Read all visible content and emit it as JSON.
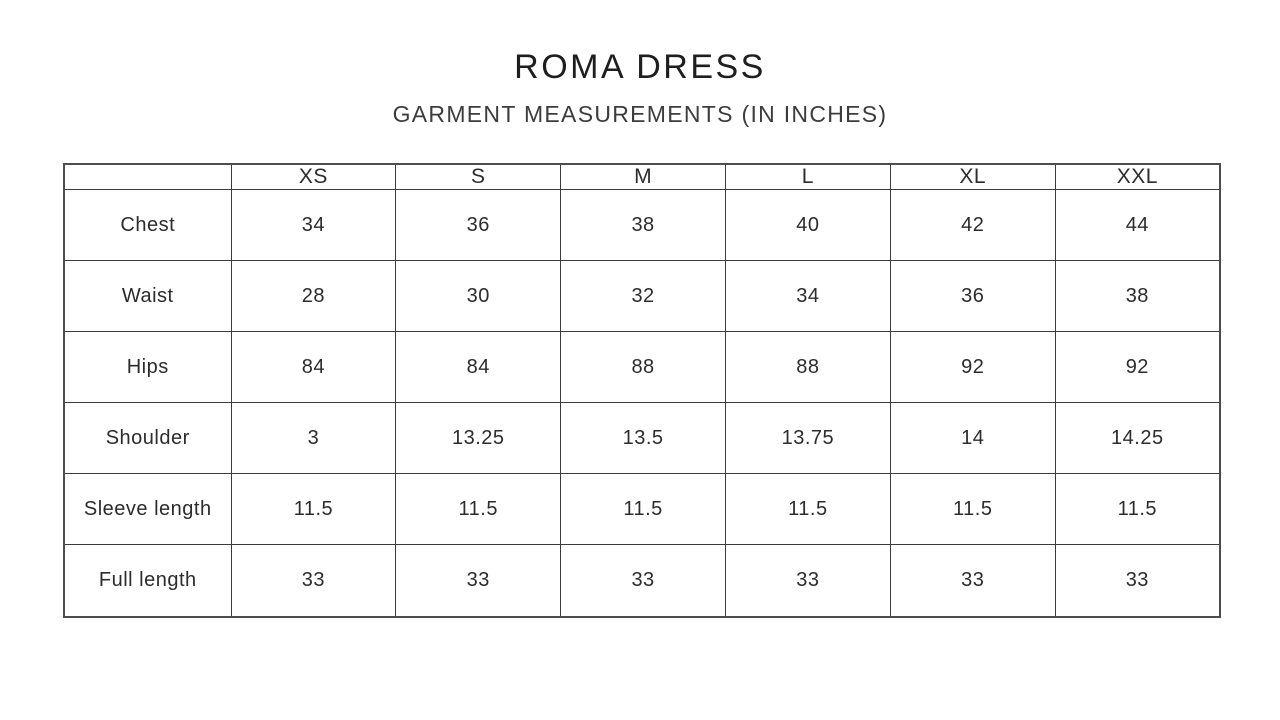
{
  "header": {
    "title": "ROMA DRESS",
    "subtitle": "GARMENT MEASUREMENTS (IN INCHES)"
  },
  "chart_data": {
    "type": "table",
    "title": "ROMA DRESS",
    "subtitle": "GARMENT MEASUREMENTS (IN INCHES)",
    "unit": "inches",
    "columns": [
      "",
      "XS",
      "S",
      "M",
      "L",
      "XL",
      "XXL"
    ],
    "rows": [
      {
        "label": "Chest",
        "values": [
          "34",
          "36",
          "38",
          "40",
          "42",
          "44"
        ]
      },
      {
        "label": "Waist",
        "values": [
          "28",
          "30",
          "32",
          "34",
          "36",
          "38"
        ]
      },
      {
        "label": "Hips",
        "values": [
          "84",
          "84",
          "88",
          "88",
          "92",
          "92"
        ]
      },
      {
        "label": "Shoulder",
        "values": [
          "3",
          "13.25",
          "13.5",
          "13.75",
          "14",
          "14.25"
        ]
      },
      {
        "label": "Sleeve length",
        "values": [
          "11.5",
          "11.5",
          "11.5",
          "11.5",
          "11.5",
          "11.5"
        ]
      },
      {
        "label": "Full length",
        "values": [
          "33",
          "33",
          "33",
          "33",
          "33",
          "33"
        ]
      }
    ]
  },
  "colors": {
    "background": "#ffffff",
    "title_text": "#1e1e1e",
    "subtitle_text": "#3c3c3c",
    "table_text": "#2c2c2c",
    "table_border": "#3b3b3b"
  }
}
